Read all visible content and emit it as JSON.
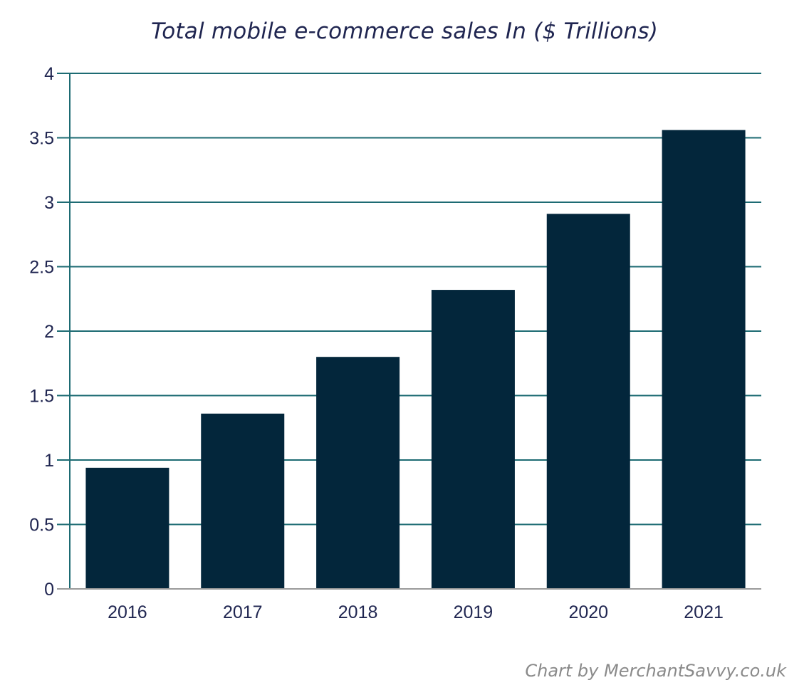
{
  "chart_data": {
    "type": "bar",
    "title": "Total mobile e-commerce sales In ($ Trillions)",
    "xlabel": "",
    "ylabel": "",
    "categories": [
      "2016",
      "2017",
      "2018",
      "2019",
      "2020",
      "2021"
    ],
    "values": [
      0.94,
      1.36,
      1.8,
      2.32,
      2.91,
      3.56
    ],
    "ylim": [
      0,
      4
    ],
    "yticks": [
      "0",
      "0.5",
      "1",
      "1.5",
      "2",
      "2.5",
      "3",
      "3.5",
      "4"
    ],
    "grid": true,
    "legend": "none",
    "colors": {
      "bar": "#03263b",
      "grid": "#1d6b73",
      "axis_text": "#1f2550"
    }
  },
  "credit": "Chart by MerchantSavvy.co.uk"
}
